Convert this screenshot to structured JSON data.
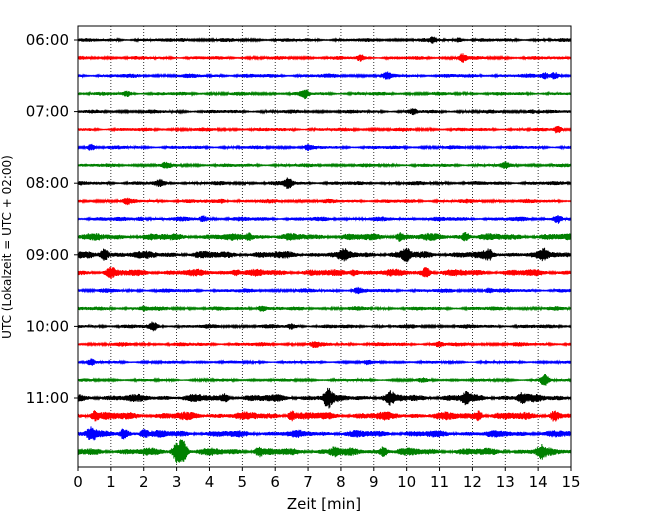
{
  "chart_data": {
    "type": "line",
    "xlabel": "Zeit  [min]",
    "ylabel": "UTC (Lokalzeit = UTC + 02:00)",
    "xlim": [
      0,
      15
    ],
    "x_ticks": [
      0,
      1,
      2,
      3,
      4,
      5,
      6,
      7,
      8,
      9,
      10,
      11,
      12,
      13,
      14,
      15
    ],
    "grid": "x-dotted",
    "y_tick_labels": [
      "06:00",
      "07:00",
      "08:00",
      "09:00",
      "10:00",
      "11:00"
    ],
    "y_tick_rows": [
      0,
      4,
      8,
      12,
      16,
      20
    ],
    "colors": [
      "#000000",
      "#ff0000",
      "#0000ff",
      "#008000"
    ],
    "rows": [
      {
        "color": "#000000",
        "base": 1.6,
        "events": [
          [
            10.8,
            2.5
          ],
          [
            11.6,
            2.0
          ],
          [
            3.2,
            1.5
          ]
        ]
      },
      {
        "color": "#ff0000",
        "base": 1.6,
        "events": [
          [
            8.6,
            2.5
          ],
          [
            11.7,
            4.0
          ]
        ]
      },
      {
        "color": "#0000ff",
        "base": 1.8,
        "events": [
          [
            14.2,
            3.0
          ],
          [
            14.5,
            3.0
          ],
          [
            9.4,
            2.0
          ]
        ]
      },
      {
        "color": "#008000",
        "base": 1.6,
        "events": [
          [
            6.9,
            4.0
          ],
          [
            1.5,
            2.0
          ]
        ]
      },
      {
        "color": "#000000",
        "base": 1.6,
        "events": [
          [
            10.2,
            2.0
          ],
          [
            13.8,
            2.0
          ]
        ]
      },
      {
        "color": "#ff0000",
        "base": 1.6,
        "events": [
          [
            14.6,
            4.0
          ]
        ]
      },
      {
        "color": "#0000ff",
        "base": 1.6,
        "events": [
          [
            0.4,
            3.0
          ],
          [
            7.0,
            2.0
          ]
        ]
      },
      {
        "color": "#008000",
        "base": 1.6,
        "events": [
          [
            2.7,
            2.0
          ],
          [
            13.0,
            2.0
          ]
        ]
      },
      {
        "color": "#000000",
        "base": 1.8,
        "events": [
          [
            6.4,
            5.0
          ],
          [
            2.5,
            2.5
          ]
        ]
      },
      {
        "color": "#ff0000",
        "base": 1.8,
        "events": [
          [
            1.5,
            2.0
          ],
          [
            4.4,
            2.0
          ]
        ]
      },
      {
        "color": "#0000ff",
        "base": 2.0,
        "events": [
          [
            14.6,
            4.0
          ],
          [
            3.8,
            2.5
          ],
          [
            1.9,
            2.0
          ]
        ]
      },
      {
        "color": "#008000",
        "base": 3.2,
        "events": [
          [
            9.8,
            3.5
          ],
          [
            11.8,
            3.5
          ],
          [
            5.2,
            3.0
          ]
        ]
      },
      {
        "color": "#000000",
        "base": 3.4,
        "events": [
          [
            0.8,
            6.0
          ],
          [
            8.1,
            3.5
          ],
          [
            10.0,
            4.0
          ],
          [
            12.5,
            3.5
          ],
          [
            14.2,
            3.0
          ]
        ]
      },
      {
        "color": "#ff0000",
        "base": 3.2,
        "events": [
          [
            10.6,
            4.5
          ],
          [
            8.4,
            3.0
          ],
          [
            1.0,
            3.5
          ],
          [
            4.8,
            3.0
          ]
        ]
      },
      {
        "color": "#0000ff",
        "base": 1.8,
        "events": [
          [
            8.5,
            2.5
          ],
          [
            12.5,
            2.5
          ]
        ]
      },
      {
        "color": "#008000",
        "base": 1.8,
        "events": [
          [
            5.6,
            3.5
          ],
          [
            2.0,
            2.0
          ]
        ]
      },
      {
        "color": "#000000",
        "base": 1.8,
        "events": [
          [
            2.3,
            3.5
          ],
          [
            6.5,
            2.0
          ]
        ]
      },
      {
        "color": "#ff0000",
        "base": 1.8,
        "events": [
          [
            7.2,
            2.0
          ],
          [
            11.0,
            2.0
          ]
        ]
      },
      {
        "color": "#0000ff",
        "base": 1.3,
        "events": [
          [
            0.4,
            2.5
          ],
          [
            8.8,
            1.5
          ]
        ]
      },
      {
        "color": "#008000",
        "base": 1.3,
        "events": [
          [
            14.2,
            6.0
          ],
          [
            10.5,
            1.5
          ]
        ]
      },
      {
        "color": "#000000",
        "base": 3.4,
        "events": [
          [
            7.6,
            8.0
          ],
          [
            9.5,
            4.0
          ],
          [
            11.8,
            4.0
          ],
          [
            13.5,
            3.5
          ],
          [
            4.5,
            3.0
          ]
        ]
      },
      {
        "color": "#ff0000",
        "base": 3.6,
        "events": [
          [
            0.5,
            4.0
          ],
          [
            6.5,
            4.0
          ],
          [
            12.2,
            4.0
          ],
          [
            14.5,
            4.0
          ]
        ]
      },
      {
        "color": "#0000ff",
        "base": 3.2,
        "events": [
          [
            0.4,
            5.5
          ],
          [
            1.4,
            4.0
          ],
          [
            2.0,
            3.5
          ]
        ]
      },
      {
        "color": "#008000",
        "base": 3.4,
        "events": [
          [
            3.2,
            11.0
          ],
          [
            3.0,
            9.0
          ],
          [
            9.3,
            4.0
          ],
          [
            14.1,
            4.5
          ],
          [
            5.5,
            3.5
          ],
          [
            7.8,
            3.5
          ]
        ]
      }
    ]
  }
}
